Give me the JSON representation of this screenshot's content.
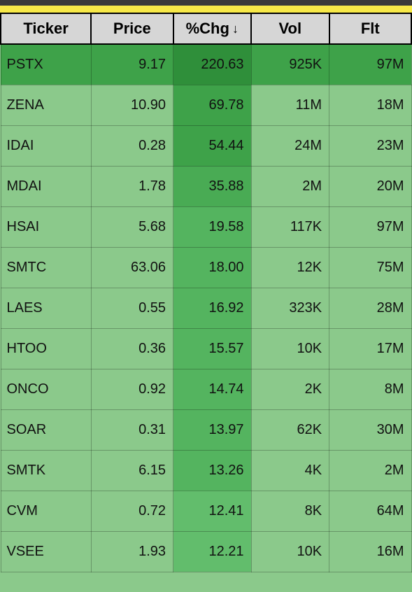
{
  "colors": {
    "page_bg": "#8bc98b",
    "top_bar": "#3a3a3a",
    "yellow_strip": "#f7e948",
    "header_bg": "#d6d6d6",
    "header_border": "#000000",
    "cell_border": "rgba(0,0,0,0.25)",
    "chg_shades": {
      "s5": "#2f8f3a",
      "s4": "#3ea249",
      "s3": "#49ab54",
      "s2": "#54b45f",
      "s1": "#62bd6c"
    },
    "row_highlight": "#3ea249",
    "row_normal": "#8bc98b"
  },
  "table": {
    "columns": [
      {
        "key": "ticker",
        "label": "Ticker",
        "sorted": false,
        "width": "22%"
      },
      {
        "key": "price",
        "label": "Price",
        "sorted": false,
        "width": "20%"
      },
      {
        "key": "chg",
        "label": "%Chg",
        "sorted": true,
        "sort_dir": "desc",
        "width": "19%"
      },
      {
        "key": "vol",
        "label": "Vol",
        "sorted": false,
        "width": "19%"
      },
      {
        "key": "flt",
        "label": "Flt",
        "sorted": false,
        "width": "20%"
      }
    ],
    "rows": [
      {
        "ticker": "PSTX",
        "price": "9.17",
        "chg": "220.63",
        "chg_shade": "s5",
        "vol": "925K",
        "flt": "97M",
        "row_bg": "row_highlight"
      },
      {
        "ticker": "ZENA",
        "price": "10.90",
        "chg": "69.78",
        "chg_shade": "s4",
        "vol": "11M",
        "flt": "18M",
        "row_bg": "row_normal"
      },
      {
        "ticker": "IDAI",
        "price": "0.28",
        "chg": "54.44",
        "chg_shade": "s4",
        "vol": "24M",
        "flt": "23M",
        "row_bg": "row_normal"
      },
      {
        "ticker": "MDAI",
        "price": "1.78",
        "chg": "35.88",
        "chg_shade": "s3",
        "vol": "2M",
        "flt": "20M",
        "row_bg": "row_normal"
      },
      {
        "ticker": "HSAI",
        "price": "5.68",
        "chg": "19.58",
        "chg_shade": "s2",
        "vol": "117K",
        "flt": "97M",
        "row_bg": "row_normal"
      },
      {
        "ticker": "SMTC",
        "price": "63.06",
        "chg": "18.00",
        "chg_shade": "s2",
        "vol": "12K",
        "flt": "75M",
        "row_bg": "row_normal"
      },
      {
        "ticker": "LAES",
        "price": "0.55",
        "chg": "16.92",
        "chg_shade": "s2",
        "vol": "323K",
        "flt": "28M",
        "row_bg": "row_normal"
      },
      {
        "ticker": "HTOO",
        "price": "0.36",
        "chg": "15.57",
        "chg_shade": "s2",
        "vol": "10K",
        "flt": "17M",
        "row_bg": "row_normal"
      },
      {
        "ticker": "ONCO",
        "price": "0.92",
        "chg": "14.74",
        "chg_shade": "s2",
        "vol": "2K",
        "flt": "8M",
        "row_bg": "row_normal"
      },
      {
        "ticker": "SOAR",
        "price": "0.31",
        "chg": "13.97",
        "chg_shade": "s2",
        "vol": "62K",
        "flt": "30M",
        "row_bg": "row_normal"
      },
      {
        "ticker": "SMTK",
        "price": "6.15",
        "chg": "13.26",
        "chg_shade": "s2",
        "vol": "4K",
        "flt": "2M",
        "row_bg": "row_normal"
      },
      {
        "ticker": "CVM",
        "price": "0.72",
        "chg": "12.41",
        "chg_shade": "s1",
        "vol": "8K",
        "flt": "64M",
        "row_bg": "row_normal"
      },
      {
        "ticker": "VSEE",
        "price": "1.93",
        "chg": "12.21",
        "chg_shade": "s1",
        "vol": "10K",
        "flt": "16M",
        "row_bg": "row_normal"
      }
    ]
  }
}
